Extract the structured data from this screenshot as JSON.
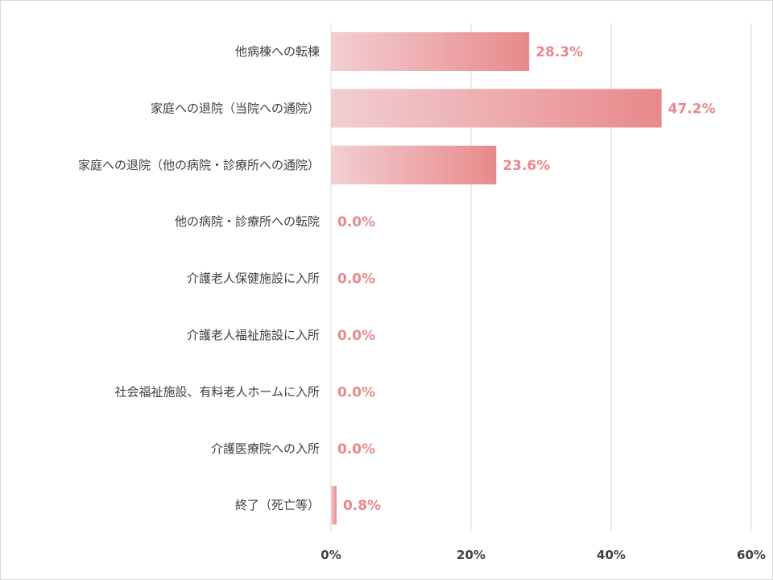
{
  "chart_data": {
    "type": "bar",
    "orientation": "horizontal",
    "categories": [
      "他病棟への転棟",
      "家庭への退院（当院への通院）",
      "家庭への退院（他の病院・診療所への通院）",
      "他の病院・診療所への転院",
      "介護老人保健施設に入所",
      "介護老人福祉施設に入所",
      "社会福祉施設、有料老人ホームに入所",
      "介護医療院への入所",
      "終了（死亡等）"
    ],
    "values": [
      28.3,
      47.2,
      23.6,
      0.0,
      0.0,
      0.0,
      0.0,
      0.0,
      0.8
    ],
    "value_labels": [
      "28.3%",
      "47.2%",
      "23.6%",
      "0.0%",
      "0.0%",
      "0.0%",
      "0.0%",
      "0.0%",
      "0.8%"
    ],
    "title": "",
    "xlabel": "",
    "ylabel": "",
    "xlim": [
      0,
      60
    ],
    "x_ticks": [
      0,
      20,
      40,
      60
    ],
    "x_tick_labels": [
      "0%",
      "20%",
      "40%",
      "60%"
    ],
    "grid": true,
    "legend": "none",
    "colors": {
      "bar_gradient_start": "#f2cfd2",
      "bar_gradient_end": "#e8898b",
      "value_label": "#e8898b",
      "gridline": "#d9d9d9",
      "axis_text": "#404040"
    }
  }
}
